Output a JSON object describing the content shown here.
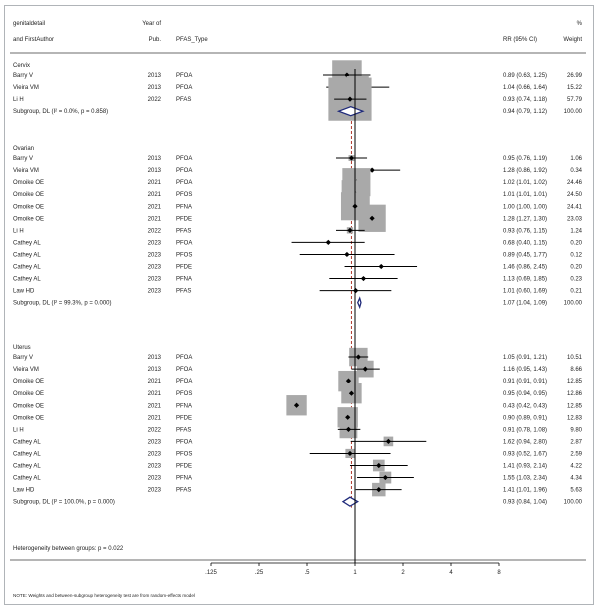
{
  "header": {
    "col1_line1": "genitaldetail",
    "col1_line2": "and FirstAuthor",
    "col2_line1": "Year of",
    "col2_line2": "Pub.",
    "col3": "PFAS_Type",
    "col4": "RR (95% CI)",
    "col5_line1": "%",
    "col5_line2": "Weight"
  },
  "chart_data": {
    "type": "forest",
    "scale": "log",
    "xlim": [
      0.125,
      8
    ],
    "null_value": 1,
    "x_ticks": [
      {
        "value": 0.125,
        "label": ".125"
      },
      {
        "value": 0.25,
        "label": ".25"
      },
      {
        "value": 0.5,
        "label": ".5"
      },
      {
        "value": 1,
        "label": "1"
      },
      {
        "value": 2,
        "label": "2"
      },
      {
        "value": 4,
        "label": "4"
      },
      {
        "value": 8,
        "label": "8"
      }
    ],
    "groups": [
      {
        "name": "Cervix",
        "studies": [
          {
            "author": "Barry V",
            "year": "2013",
            "pfas": "PFOA",
            "rr": 0.89,
            "lo": 0.63,
            "hi": 1.25,
            "ci_text": "0.89 (0.63, 1.25)",
            "weight": "26.99",
            "w": 26.99
          },
          {
            "author": "Vieira VM",
            "year": "2013",
            "pfas": "PFOA",
            "rr": 1.04,
            "lo": 0.66,
            "hi": 1.64,
            "ci_text": "1.04 (0.66, 1.64)",
            "weight": "15.22",
            "w": 15.22
          },
          {
            "author": "Li H",
            "year": "2022",
            "pfas": "PFAS",
            "rr": 0.93,
            "lo": 0.74,
            "hi": 1.18,
            "ci_text": "0.93 (0.74, 1.18)",
            "weight": "57.79",
            "w": 57.79
          }
        ],
        "subgroup": {
          "label": "Subgroup, DL (I² = 0.0%, p = 0.858)",
          "rr": 0.94,
          "lo": 0.79,
          "hi": 1.12,
          "ci_text": "0.94 (0.79, 1.12)",
          "weight": "100.00"
        }
      },
      {
        "name": "Ovarian",
        "studies": [
          {
            "author": "Barry V",
            "year": "2013",
            "pfas": "PFOA",
            "rr": 0.95,
            "lo": 0.76,
            "hi": 1.19,
            "ci_text": "0.95 (0.76, 1.19)",
            "weight": "1.06",
            "w": 1.06
          },
          {
            "author": "Vieira VM",
            "year": "2013",
            "pfas": "PFOA",
            "rr": 1.28,
            "lo": 0.86,
            "hi": 1.92,
            "ci_text": "1.28 (0.86, 1.92)",
            "weight": "0.34",
            "w": 0.34
          },
          {
            "author": "Omoike OE",
            "year": "2021",
            "pfas": "PFOA",
            "rr": 1.02,
            "lo": 1.01,
            "hi": 1.02,
            "ci_text": "1.02 (1.01, 1.02)",
            "weight": "24.46",
            "w": 24.46
          },
          {
            "author": "Omoike OE",
            "year": "2021",
            "pfas": "PFOS",
            "rr": 1.01,
            "lo": 1.01,
            "hi": 1.01,
            "ci_text": "1.01 (1.01, 1.01)",
            "weight": "24.50",
            "w": 24.5
          },
          {
            "author": "Omoike OE",
            "year": "2021",
            "pfas": "PFNA",
            "rr": 1.0,
            "lo": 1.0,
            "hi": 1.0,
            "ci_text": "1.00 (1.00, 1.00)",
            "weight": "24.41",
            "w": 24.41
          },
          {
            "author": "Omoike OE",
            "year": "2021",
            "pfas": "PFDE",
            "rr": 1.28,
            "lo": 1.27,
            "hi": 1.3,
            "ci_text": "1.28 (1.27, 1.30)",
            "weight": "23.03",
            "w": 23.03
          },
          {
            "author": "Li H",
            "year": "2022",
            "pfas": "PFAS",
            "rr": 0.93,
            "lo": 0.76,
            "hi": 1.15,
            "ci_text": "0.93 (0.76, 1.15)",
            "weight": "1.24",
            "w": 1.24
          },
          {
            "author": "Cathey AL",
            "year": "2023",
            "pfas": "PFOA",
            "rr": 0.68,
            "lo": 0.4,
            "hi": 1.15,
            "ci_text": "0.68 (0.40, 1.15)",
            "weight": "0.20",
            "w": 0.2
          },
          {
            "author": "Cathey AL",
            "year": "2023",
            "pfas": "PFOS",
            "rr": 0.89,
            "lo": 0.45,
            "hi": 1.77,
            "ci_text": "0.89 (0.45, 1.77)",
            "weight": "0.12",
            "w": 0.12
          },
          {
            "author": "Cathey AL",
            "year": "2023",
            "pfas": "PFDE",
            "rr": 1.46,
            "lo": 0.86,
            "hi": 2.45,
            "ci_text": "1.46 (0.86, 2.45)",
            "weight": "0.20",
            "w": 0.2
          },
          {
            "author": "Cathey AL",
            "year": "2023",
            "pfas": "PFNA",
            "rr": 1.13,
            "lo": 0.69,
            "hi": 1.85,
            "ci_text": "1.13 (0.69, 1.85)",
            "weight": "0.23",
            "w": 0.23
          },
          {
            "author": "Law HD",
            "year": "2023",
            "pfas": "PFAS",
            "rr": 1.01,
            "lo": 0.6,
            "hi": 1.69,
            "ci_text": "1.01 (0.60, 1.69)",
            "weight": "0.21",
            "w": 0.21
          }
        ],
        "subgroup": {
          "label": "Subgroup, DL (I² = 99.3%, p = 0.000)",
          "rr": 1.07,
          "lo": 1.04,
          "hi": 1.09,
          "ci_text": "1.07 (1.04, 1.09)",
          "weight": "100.00"
        }
      },
      {
        "name": "Uterus",
        "studies": [
          {
            "author": "Barry V",
            "year": "2013",
            "pfas": "PFOA",
            "rr": 1.05,
            "lo": 0.91,
            "hi": 1.21,
            "ci_text": "1.05 (0.91, 1.21)",
            "weight": "10.51",
            "w": 10.51
          },
          {
            "author": "Vieira VM",
            "year": "2013",
            "pfas": "PFOA",
            "rr": 1.16,
            "lo": 0.95,
            "hi": 1.43,
            "ci_text": "1.16 (0.95, 1.43)",
            "weight": "8.66",
            "w": 8.66
          },
          {
            "author": "Omoike OE",
            "year": "2021",
            "pfas": "PFOA",
            "rr": 0.91,
            "lo": 0.91,
            "hi": 0.91,
            "ci_text": "0.91 (0.91, 0.91)",
            "weight": "12.85",
            "w": 12.85
          },
          {
            "author": "Omoike OE",
            "year": "2021",
            "pfas": "PFOS",
            "rr": 0.95,
            "lo": 0.94,
            "hi": 0.95,
            "ci_text": "0.95 (0.94, 0.95)",
            "weight": "12.86",
            "w": 12.86
          },
          {
            "author": "Omoike OE",
            "year": "2021",
            "pfas": "PFNA",
            "rr": 0.43,
            "lo": 0.42,
            "hi": 0.43,
            "ci_text": "0.43 (0.42, 0.43)",
            "weight": "12.85",
            "w": 12.85
          },
          {
            "author": "Omoike OE",
            "year": "2021",
            "pfas": "PFDE",
            "rr": 0.9,
            "lo": 0.89,
            "hi": 0.91,
            "ci_text": "0.90 (0.89, 0.91)",
            "weight": "12.83",
            "w": 12.83
          },
          {
            "author": "Li H",
            "year": "2022",
            "pfas": "PFAS",
            "rr": 0.91,
            "lo": 0.78,
            "hi": 1.08,
            "ci_text": "0.91 (0.78, 1.08)",
            "weight": "9.80",
            "w": 9.8
          },
          {
            "author": "Cathey AL",
            "year": "2023",
            "pfas": "PFOA",
            "rr": 1.62,
            "lo": 0.94,
            "hi": 2.8,
            "ci_text": "1.62 (0.94, 2.80)",
            "weight": "2.87",
            "w": 2.87
          },
          {
            "author": "Cathey AL",
            "year": "2023",
            "pfas": "PFOS",
            "rr": 0.93,
            "lo": 0.52,
            "hi": 1.67,
            "ci_text": "0.93 (0.52, 1.67)",
            "weight": "2.59",
            "w": 2.59
          },
          {
            "author": "Cathey AL",
            "year": "2023",
            "pfas": "PFDE",
            "rr": 1.41,
            "lo": 0.93,
            "hi": 2.14,
            "ci_text": "1.41 (0.93, 2.14)",
            "weight": "4.22",
            "w": 4.22
          },
          {
            "author": "Cathey AL",
            "year": "2023",
            "pfas": "PFNA",
            "rr": 1.55,
            "lo": 1.03,
            "hi": 2.34,
            "ci_text": "1.55 (1.03, 2.34)",
            "weight": "4.34",
            "w": 4.34
          },
          {
            "author": "Law HD",
            "year": "2023",
            "pfas": "PFAS",
            "rr": 1.41,
            "lo": 1.01,
            "hi": 1.96,
            "ci_text": "1.41 (1.01, 1.96)",
            "weight": "5.63",
            "w": 5.63
          }
        ],
        "subgroup": {
          "label": "Subgroup, DL (I² = 100.0%, p = 0.000)",
          "rr": 0.93,
          "lo": 0.84,
          "hi": 1.04,
          "ci_text": "0.93 (0.84, 1.04)",
          "weight": "100.00"
        }
      }
    ],
    "heterogeneity_text": "Heterogeneity between groups: p = 0.022",
    "note": "NOTE: Weights and between-subgroup heterogeneity test are from random-effects model",
    "colors": {
      "weight_box": "#a9a9a9",
      "point": "#000000",
      "diamond": "#1f2a7a",
      "overall_line": "#b03a2e",
      "frame": "#9aa0a6"
    }
  }
}
